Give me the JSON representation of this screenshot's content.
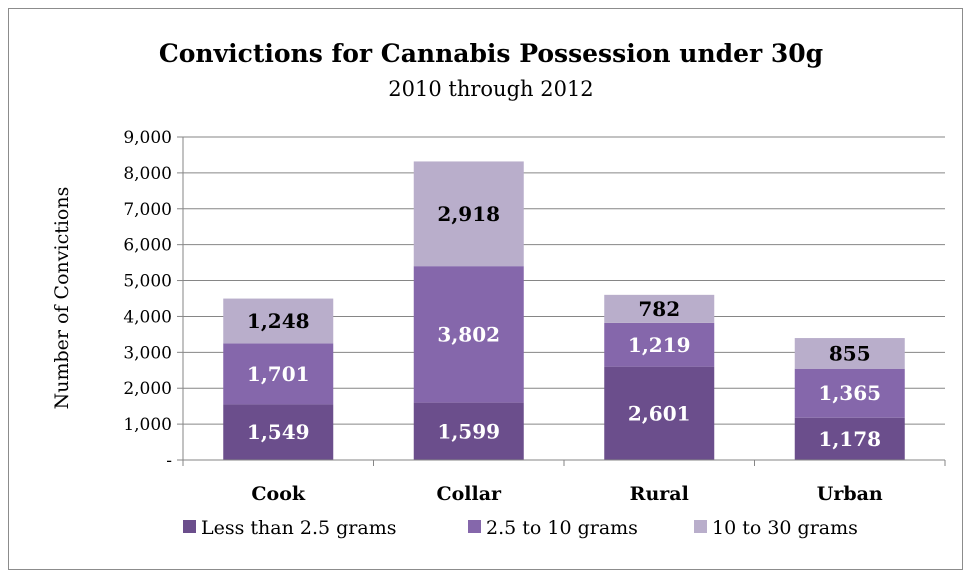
{
  "chart_data": {
    "type": "bar",
    "stacked": true,
    "title": "Convictions for Cannabis Possession under 30g",
    "subtitle": "2010 through 2012",
    "ylabel": "Number of Convictions",
    "xlabel": "",
    "ylim": [
      0,
      9000
    ],
    "yticks": [
      "-",
      "1,000",
      "2,000",
      "3,000",
      "4,000",
      "5,000",
      "6,000",
      "7,000",
      "8,000",
      "9,000"
    ],
    "grid": true,
    "legend_position": "bottom",
    "categories": [
      "Cook",
      "Collar",
      "Rural",
      "Urban"
    ],
    "series": [
      {
        "name": "Less than 2.5 grams",
        "color": "#6b4e8c",
        "label_color": "#ffffff",
        "values": [
          1549,
          1599,
          2601,
          1178
        ],
        "labels": [
          "1,549",
          "1,599",
          "2,601",
          "1,178"
        ]
      },
      {
        "name": "2.5 to 10 grams",
        "color": "#8567ab",
        "label_color": "#ffffff",
        "values": [
          1701,
          3802,
          1219,
          1365
        ],
        "labels": [
          "1,701",
          "3,802",
          "1,219",
          "1,365"
        ]
      },
      {
        "name": "10 to 30 grams",
        "color": "#b9aecb",
        "label_color": "#000000",
        "values": [
          1248,
          2918,
          782,
          855
        ],
        "labels": [
          "1,248",
          "2,918",
          "782",
          "855"
        ]
      }
    ]
  }
}
